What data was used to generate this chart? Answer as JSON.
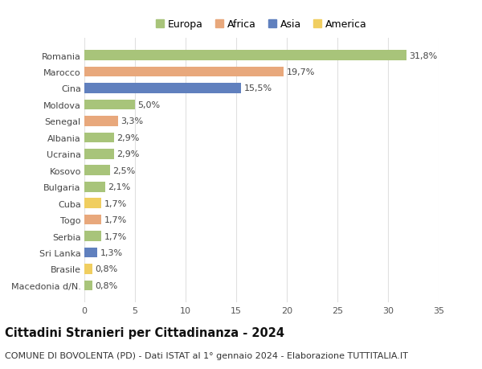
{
  "countries": [
    "Romania",
    "Marocco",
    "Cina",
    "Moldova",
    "Senegal",
    "Albania",
    "Ucraina",
    "Kosovo",
    "Bulgaria",
    "Cuba",
    "Togo",
    "Serbia",
    "Sri Lanka",
    "Brasile",
    "Macedonia d/N."
  ],
  "values": [
    31.8,
    19.7,
    15.5,
    5.0,
    3.3,
    2.9,
    2.9,
    2.5,
    2.1,
    1.7,
    1.7,
    1.7,
    1.3,
    0.8,
    0.8
  ],
  "labels": [
    "31,8%",
    "19,7%",
    "15,5%",
    "5,0%",
    "3,3%",
    "2,9%",
    "2,9%",
    "2,5%",
    "2,1%",
    "1,7%",
    "1,7%",
    "1,7%",
    "1,3%",
    "0,8%",
    "0,8%"
  ],
  "continents": [
    "Europa",
    "Africa",
    "Asia",
    "Europa",
    "Africa",
    "Europa",
    "Europa",
    "Europa",
    "Europa",
    "America",
    "Africa",
    "Europa",
    "Asia",
    "America",
    "Europa"
  ],
  "continent_colors": {
    "Europa": "#a8c47a",
    "Africa": "#e8a87c",
    "Asia": "#6080be",
    "America": "#f0ce60"
  },
  "legend_order": [
    "Europa",
    "Africa",
    "Asia",
    "America"
  ],
  "title": "Cittadini Stranieri per Cittadinanza - 2024",
  "subtitle": "COMUNE DI BOVOLENTA (PD) - Dati ISTAT al 1° gennaio 2024 - Elaborazione TUTTITALIA.IT",
  "xlim": [
    0,
    35
  ],
  "xticks": [
    0,
    5,
    10,
    15,
    20,
    25,
    30,
    35
  ],
  "background_color": "#ffffff",
  "grid_color": "#e0e0e0",
  "bar_height": 0.62,
  "title_fontsize": 10.5,
  "subtitle_fontsize": 8,
  "label_fontsize": 8,
  "tick_fontsize": 8,
  "legend_fontsize": 9
}
